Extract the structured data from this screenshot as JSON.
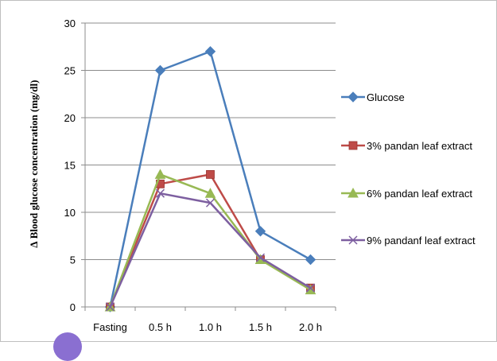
{
  "chart_data": {
    "type": "line",
    "categories": [
      "Fasting",
      "0.5 h",
      "1.0 h",
      "1.5 h",
      "2.0 h"
    ],
    "ylabel": "∆ Blood glucose concentration  (mg/dl)",
    "xlabel": "",
    "ylim": [
      0,
      30
    ],
    "yticks": [
      0,
      5,
      10,
      15,
      20,
      25,
      30
    ],
    "grid": "horizontal",
    "legend_position": "right",
    "series": [
      {
        "name": "Glucose",
        "values": [
          0,
          25,
          27,
          8,
          5
        ],
        "color": "#4a7ebb",
        "marker": "diamond"
      },
      {
        "name": "3% pandan leaf extract",
        "values": [
          0,
          13,
          14,
          5,
          2
        ],
        "color": "#be4b48",
        "marker": "square"
      },
      {
        "name": "6% pandan leaf extract",
        "values": [
          0,
          14,
          12,
          5,
          1.8
        ],
        "color": "#98b954",
        "marker": "triangle"
      },
      {
        "name": "9% pandanf leaf extract",
        "values": [
          0,
          12,
          11,
          5.2,
          2
        ],
        "color": "#7d5fa0",
        "marker": "x"
      }
    ]
  }
}
